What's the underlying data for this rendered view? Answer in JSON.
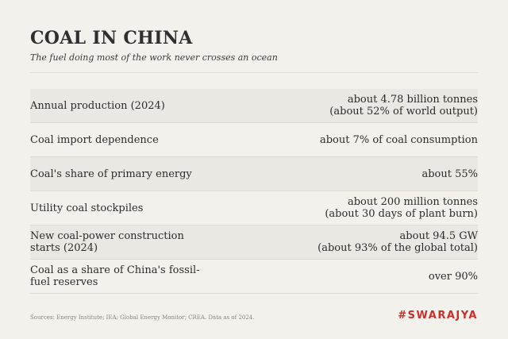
{
  "header": {
    "title": "COAL IN CHINA",
    "subtitle": "The fuel doing most of the work never crosses an ocean"
  },
  "rows": [
    {
      "label": "Annual production (2024)",
      "value_line1": "about 4.78 billion tonnes",
      "value_line2": "(about 52% of world output)"
    },
    {
      "label": "Coal import dependence",
      "value_line1": "about 7% of coal consumption",
      "value_line2": ""
    },
    {
      "label": "Coal's share of primary energy",
      "value_line1": "about 55%",
      "value_line2": ""
    },
    {
      "label": "Utility coal stockpiles",
      "value_line1": "about 200 million tonnes",
      "value_line2": "(about 30 days of plant burn)"
    },
    {
      "label": "New coal-power construction starts (2024)",
      "value_line1": "about 94.5 GW",
      "value_line2": "(about 93% of the global total)"
    },
    {
      "label": "Coal as a share of China's fossil-fuel reserves",
      "value_line1": "over 90%",
      "value_line2": ""
    }
  ],
  "footer": {
    "sources": "Sources: Energy Institute; IEA; Global Energy Monitor; CREA. Data as of 2024.",
    "brand": "#SWARAJYA",
    "brand_color": "#c9302c"
  }
}
